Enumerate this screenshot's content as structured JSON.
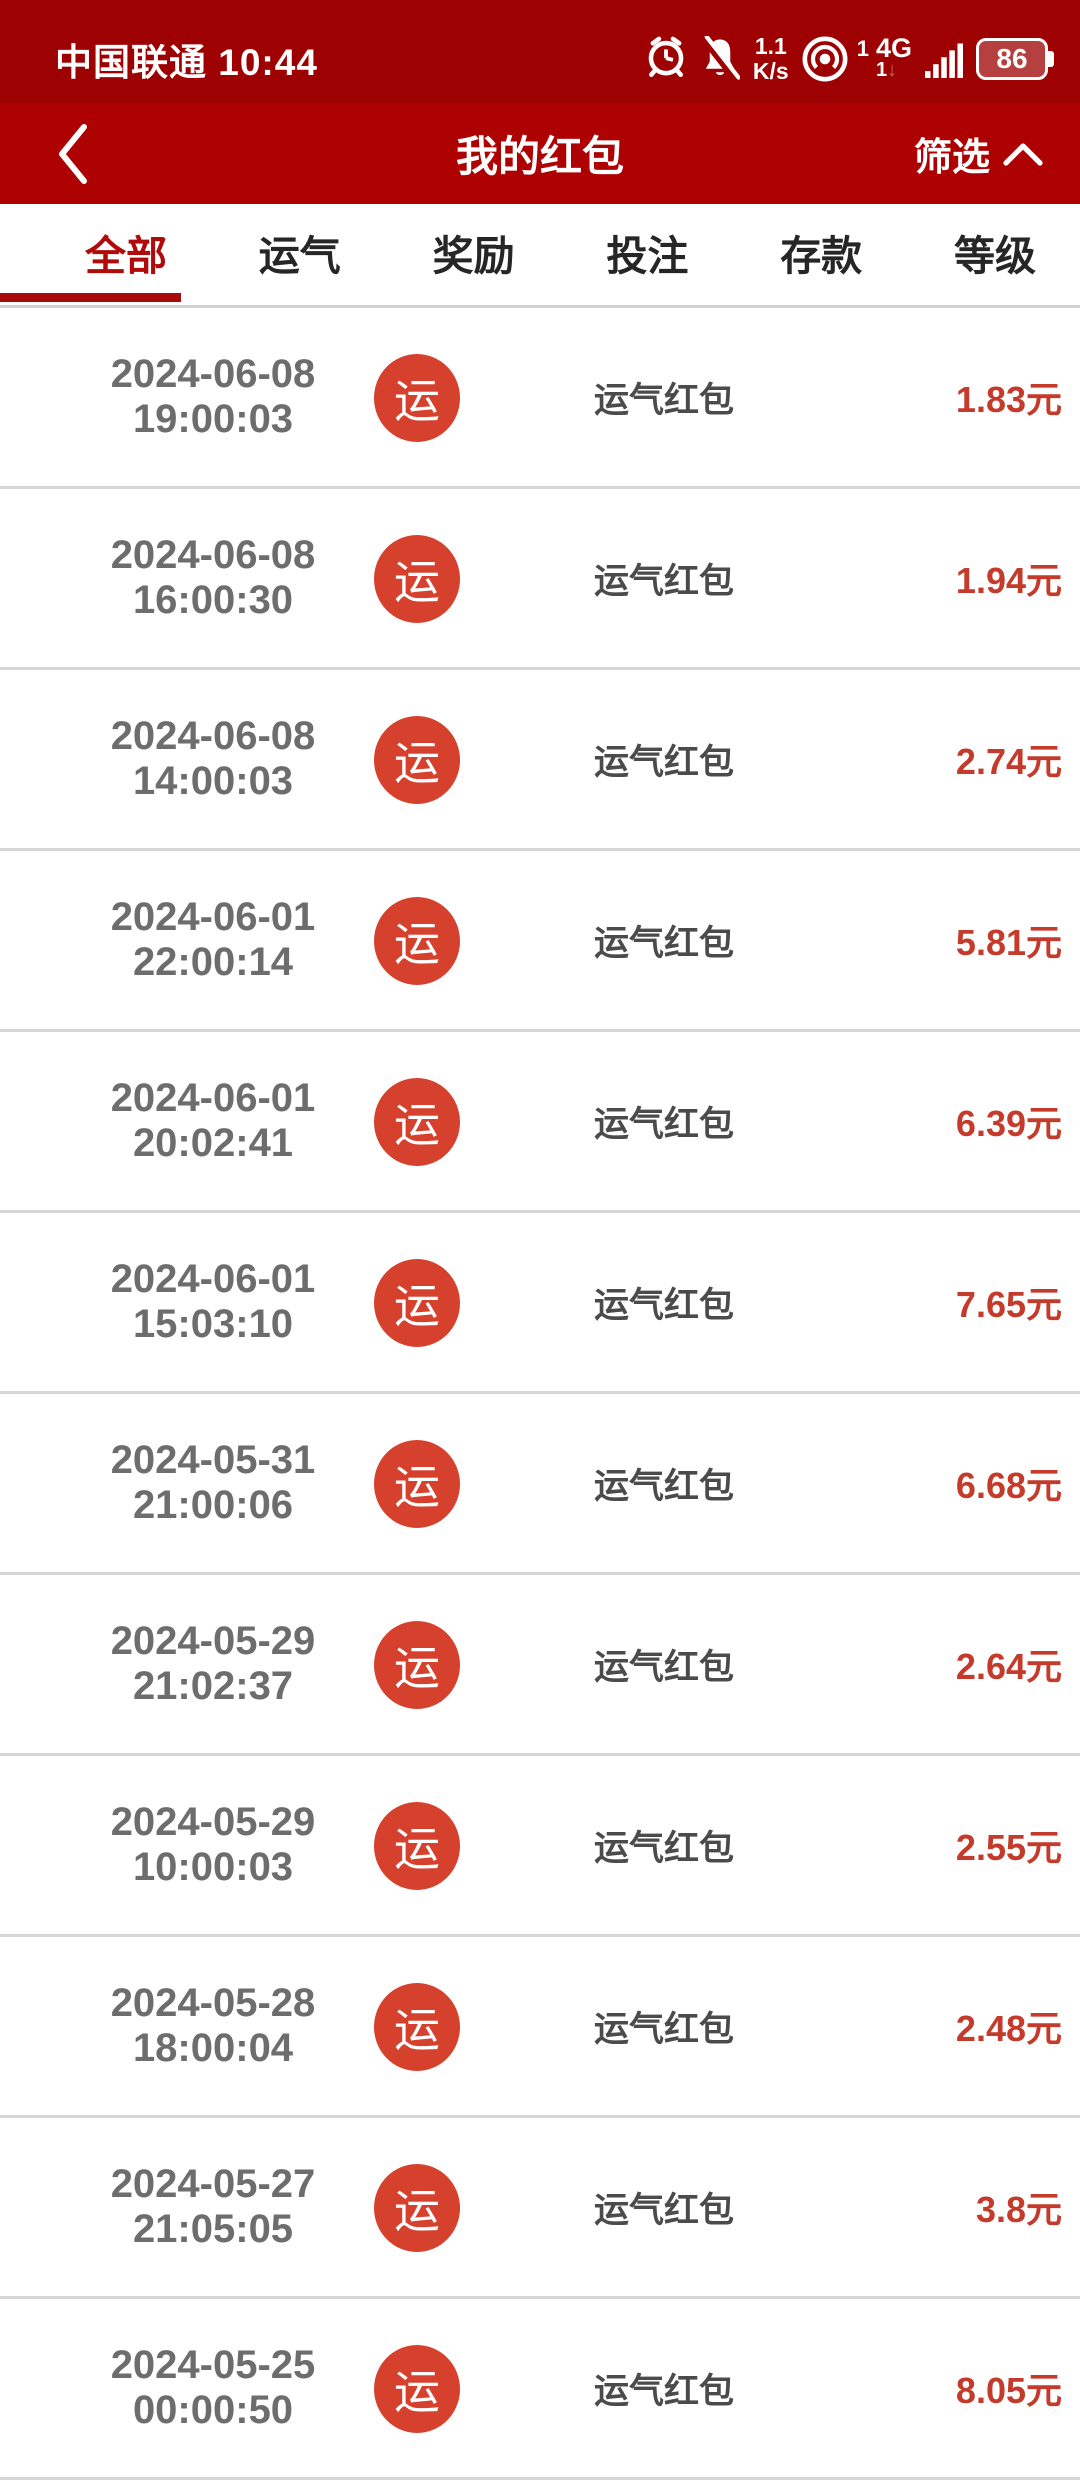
{
  "status_bar": {
    "carrier_time": "中国联通 10:44",
    "speed_value": "1.1",
    "speed_unit": "K/s",
    "hotspot_count": "1",
    "network_type": "4G",
    "download_indicator": "1",
    "download_arrow": "↓",
    "battery_level": "86",
    "icons": [
      "alarm-icon",
      "bell-muted-icon",
      "hotspot-icon",
      "signal-bars-icon",
      "battery-icon"
    ]
  },
  "nav": {
    "title": "我的红包",
    "filter_label": "筛选"
  },
  "tabs": {
    "items": [
      {
        "label": "全部",
        "active": true
      },
      {
        "label": "运气",
        "active": false
      },
      {
        "label": "奖励",
        "active": false
      },
      {
        "label": "投注",
        "active": false
      },
      {
        "label": "存款",
        "active": false
      },
      {
        "label": "等级",
        "active": false
      }
    ]
  },
  "list": {
    "badge_char": "运",
    "rows": [
      {
        "date": "2024-06-08",
        "time": "19:00:03",
        "type": "运气红包",
        "amount": "1.83元"
      },
      {
        "date": "2024-06-08",
        "time": "16:00:30",
        "type": "运气红包",
        "amount": "1.94元"
      },
      {
        "date": "2024-06-08",
        "time": "14:00:03",
        "type": "运气红包",
        "amount": "2.74元"
      },
      {
        "date": "2024-06-01",
        "time": "22:00:14",
        "type": "运气红包",
        "amount": "5.81元"
      },
      {
        "date": "2024-06-01",
        "time": "20:02:41",
        "type": "运气红包",
        "amount": "6.39元"
      },
      {
        "date": "2024-06-01",
        "time": "15:03:10",
        "type": "运气红包",
        "amount": "7.65元"
      },
      {
        "date": "2024-05-31",
        "time": "21:00:06",
        "type": "运气红包",
        "amount": "6.68元"
      },
      {
        "date": "2024-05-29",
        "time": "21:02:37",
        "type": "运气红包",
        "amount": "2.64元"
      },
      {
        "date": "2024-05-29",
        "time": "10:00:03",
        "type": "运气红包",
        "amount": "2.55元"
      },
      {
        "date": "2024-05-28",
        "time": "18:00:04",
        "type": "运气红包",
        "amount": "2.48元"
      },
      {
        "date": "2024-05-27",
        "time": "21:05:05",
        "type": "运气红包",
        "amount": "3.8元"
      },
      {
        "date": "2024-05-25",
        "time": "00:00:50",
        "type": "运气红包",
        "amount": "8.05元"
      }
    ]
  },
  "colors": {
    "status_bar_red": "#9e0101",
    "nav_bar_red": "#ae0202",
    "active_tab_red": "#b00b0b",
    "badge_red": "#d5412d",
    "amount_red": "#c43a2b",
    "separator_gray": "#d6d6d6",
    "date_gray": "#6d6d6d",
    "type_gray": "#4b4b4b"
  }
}
